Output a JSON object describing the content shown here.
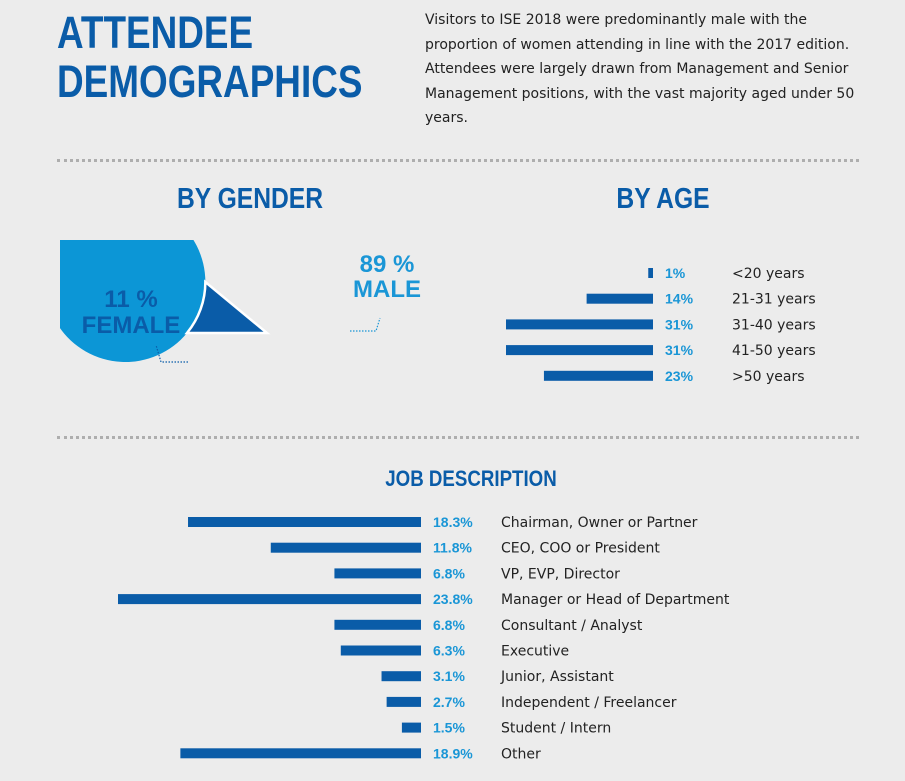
{
  "header": {
    "title_line1": "ATTENDEE",
    "title_line2": "DEMOGRAPHICS",
    "intro": "Visitors to ISE 2018 were predominantly male with the proportion of women attending in line with the 2017 edition. Attendees were largely drawn from Management and Senior Management positions, with the vast majority aged under 50 years."
  },
  "colors": {
    "dark_blue": "#0a5ca8",
    "light_blue": "#0c96d6",
    "background": "#ececec",
    "divider": "#aeaeae"
  },
  "chart_data": [
    {
      "type": "pie",
      "title": "BY GENDER",
      "slices": [
        {
          "name": "MALE",
          "value": 89,
          "label": "89 %",
          "color": "#0c96d6"
        },
        {
          "name": "FEMALE",
          "value": 11,
          "label": "11 %",
          "color": "#0a5ca8"
        }
      ]
    },
    {
      "type": "bar",
      "orientation": "horizontal",
      "title": "BY AGE",
      "categories": [
        "<20 years",
        "21-31 years",
        "31-40 years",
        "41-50 years",
        ">50 years"
      ],
      "values": [
        1,
        14,
        31,
        31,
        23
      ],
      "value_labels": [
        "1%",
        "14%",
        "31%",
        "31%",
        "23%"
      ],
      "unit": "%"
    },
    {
      "type": "bar",
      "orientation": "horizontal",
      "title": "JOB DESCRIPTION",
      "categories": [
        "Chairman, Owner or Partner",
        "CEO, COO or President",
        "VP, EVP, Director",
        "Manager or Head of Department",
        "Consultant / Analyst",
        "Executive",
        "Junior, Assistant",
        "Independent / Freelancer",
        "Student / Intern",
        "Other"
      ],
      "values": [
        18.3,
        11.8,
        6.8,
        23.8,
        6.8,
        6.3,
        3.1,
        2.7,
        1.5,
        18.9
      ],
      "value_labels": [
        "18.3%",
        "11.8%",
        "6.8%",
        "23.8%",
        "6.8%",
        "6.3%",
        "3.1%",
        "2.7%",
        "1.5%",
        "18.9%"
      ],
      "unit": "%"
    }
  ]
}
